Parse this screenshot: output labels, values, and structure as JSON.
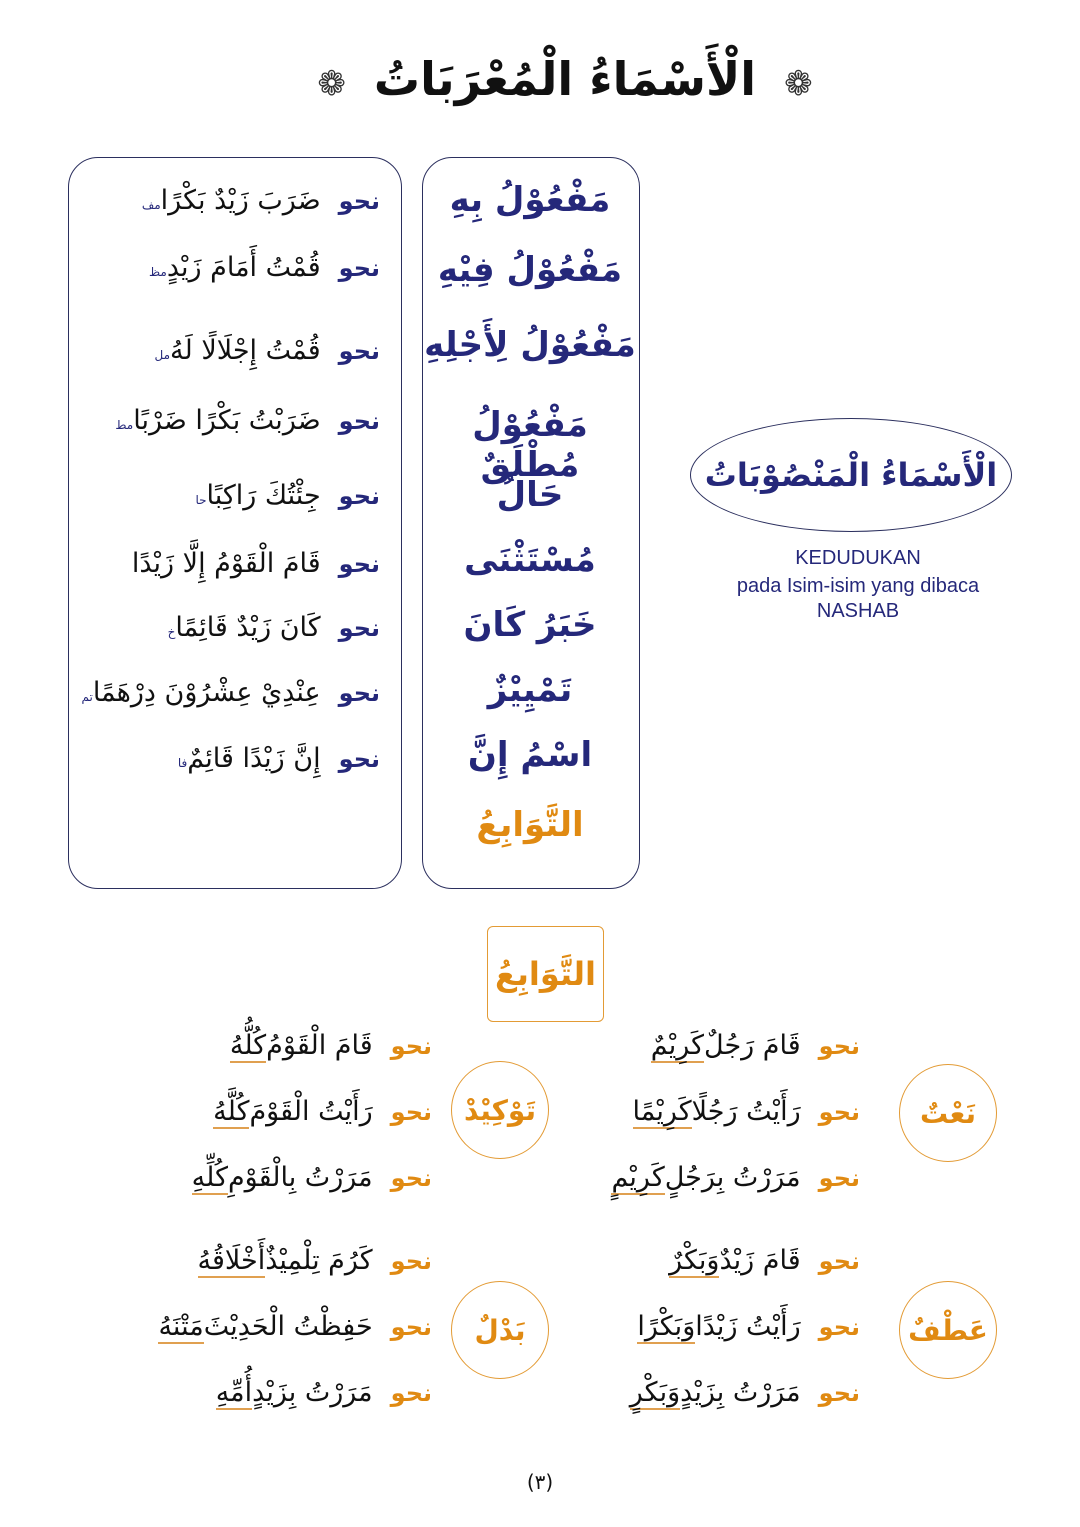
{
  "title": {
    "text": "الْأَسْمَاءُ الْمُعْرَبَاتُ",
    "ornament": "❁"
  },
  "categories": [
    "مَفْعُوْلُ بِهِ",
    "مَفْعُوْلُ فِيْهِ",
    "مَفْعُوْلُ لِأَجْلِهِ",
    "مَفْعُوْلُ مُطْلَقٌ",
    "حَالُ",
    "مُسْتَثْنَى",
    "خَبَرُ كَانَ",
    "تَمْيِيْزٌ",
    "اسْمُ إِنَّ",
    "التَّوَابِعُ"
  ],
  "nahw": "نحو",
  "examples": [
    {
      "text": "ضَرَبَ زَيْدٌ بَكْرًا",
      "tag": "مف"
    },
    {
      "text": "قُمْتُ أَمَامَ زَيْدٍ",
      "tag": "مظ"
    },
    {
      "text": "قُمْتُ إِجْلَالًا لَهُ",
      "tag": "مل"
    },
    {
      "text": "ضَرَبْتُ بَكْرًا ضَرْبًا",
      "tag": "مط"
    },
    {
      "text": "جِئْتُكَ رَاكِبًا",
      "tag": "حا"
    },
    {
      "text": "قَامَ الْقَوْمُ إِلَّا زَيْدًا",
      "tag": ""
    },
    {
      "text": "كَانَ زَيْدٌ قَائِمًا",
      "tag": "خ"
    },
    {
      "text": "عِنْدِيْ عِشْرُوْنَ دِرْهَمًا",
      "tag": "تم"
    },
    {
      "text": "إِنَّ زَيْدًا قَائِمٌ",
      "tag": "فا"
    }
  ],
  "heading": {
    "arabic": "الْأَسْمَاءُ الْمَنْصُوْبَاتُ",
    "line1": "KEDUDUKAN",
    "line2": "pada Isim-isim yang dibaca",
    "line3": "NASHAB"
  },
  "tawabi": {
    "title": "التَّوَابِعُ",
    "groups": [
      {
        "label": "نَعْتٌ",
        "rows": [
          {
            "pre": "قَامَ رَجُلٌ",
            "u": "كَرِيْمٌ"
          },
          {
            "pre": "رَأَيْتُ رَجُلًا",
            "u": "كَرِيْمًا"
          },
          {
            "pre": "مَرَرْتُ بِرَجُلٍ",
            "u": "كَرِيْمٍ"
          }
        ]
      },
      {
        "label": "تَوْكِيْدْ",
        "rows": [
          {
            "pre": "قَامَ الْقَوْمُ",
            "u": "كُلُّهُ"
          },
          {
            "pre": "رَأَيْتُ الْقَوْمَ",
            "u": "كُلَّهُ"
          },
          {
            "pre": "مَرَرْتُ بِالْقَوْمِ",
            "u": "كُلِّهِ"
          }
        ]
      },
      {
        "label": "عَطْفٌ",
        "rows": [
          {
            "pre": "قَامَ زَيْدٌ",
            "u": "وَبَكْرٌ"
          },
          {
            "pre": "رَأَيْتُ زَيْدًا",
            "u": "وَبَكْرًا"
          },
          {
            "pre": "مَرَرْتُ بِزَيْدٍ",
            "u": "وَبَكْرٍ"
          }
        ]
      },
      {
        "label": "بَدْلٌ",
        "rows": [
          {
            "pre": "كَرُمَ تِلْمِيْذٌ",
            "u": "أَخْلَاقُهُ"
          },
          {
            "pre": "حَفِظْتُ الْحَدِيْثَ",
            "u": "مَتْنَهُ"
          },
          {
            "pre": "مَرَرْتُ بِزَيْدٍ",
            "u": "أُمِّهِ"
          }
        ]
      }
    ]
  },
  "page_number": "(٣)",
  "colors": {
    "navy": "#25287a",
    "orange": "#e08a12"
  }
}
